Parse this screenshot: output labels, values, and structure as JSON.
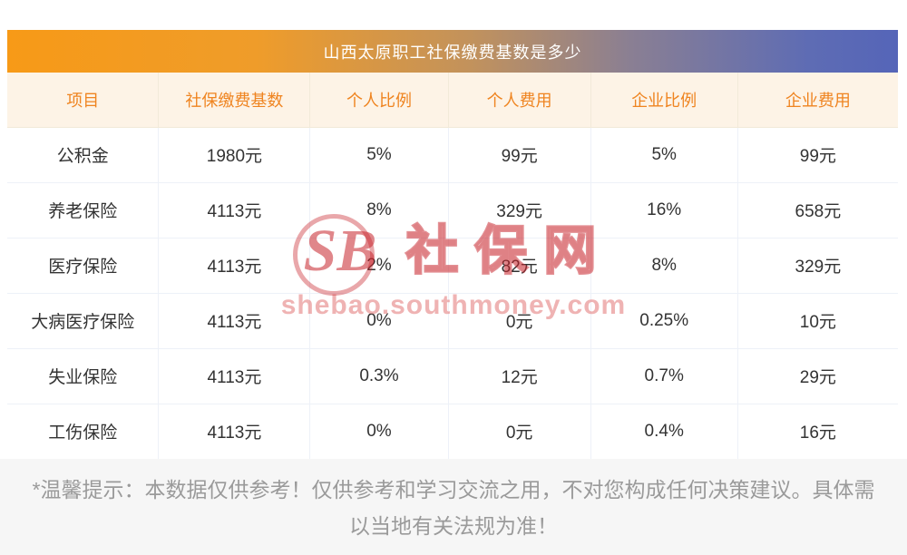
{
  "title": "山西太原职工社保缴费基数是多少",
  "chart_data": {
    "type": "table",
    "title": "山西太原职工社保缴费基数是多少",
    "columns": [
      "项目",
      "社保缴费基数",
      "个人比例",
      "个人费用",
      "企业比例",
      "企业费用"
    ],
    "rows": [
      [
        "公积金",
        "1980元",
        "5%",
        "99元",
        "5%",
        "99元"
      ],
      [
        "养老保险",
        "4113元",
        "8%",
        "329元",
        "16%",
        "658元"
      ],
      [
        "医疗保险",
        "4113元",
        "2%",
        "82元",
        "8%",
        "329元"
      ],
      [
        "大病医疗保险",
        "4113元",
        "0%",
        "0元",
        "0.25%",
        "10元"
      ],
      [
        "失业保险",
        "4113元",
        "0.3%",
        "12元",
        "0.7%",
        "29元"
      ],
      [
        "工伤保险",
        "4113元",
        "0%",
        "0元",
        "0.4%",
        "16元"
      ]
    ]
  },
  "watermark": {
    "logo_abbr": "SB",
    "site_name": "社保网",
    "url": "shebao.southmoney.com"
  },
  "footer": {
    "note": "*温馨提示：本数据仅供参考！仅供参考和学习交流之用，不对您构成任何决策建议。具体需以当地有关法规为准！"
  },
  "colors": {
    "title_gradient_left": "#f79a17",
    "title_gradient_right": "#5565b8",
    "header_bg": "#fdf3e6",
    "header_text": "#ef8420",
    "cell_text": "#333333",
    "border": "#edf1f8",
    "watermark_red": "#c7222a",
    "footer_text": "#9a9a9a"
  }
}
